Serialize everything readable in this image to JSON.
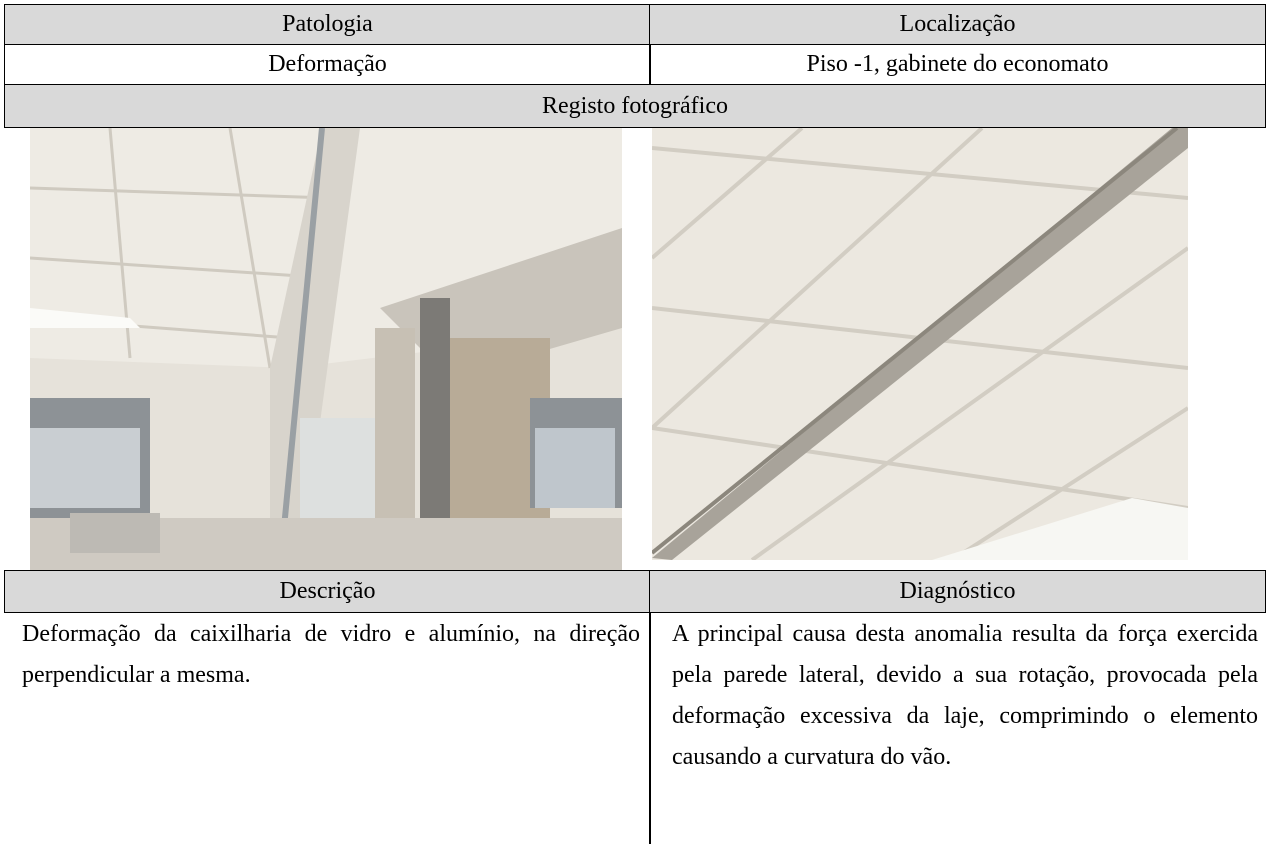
{
  "table": {
    "header": [
      "Patologia",
      "Localização"
    ],
    "row": [
      "Deformação",
      "Piso -1, gabinete do economato"
    ],
    "photo_header": "Registo fotográfico",
    "section_header": [
      "Descrição",
      "Diagnóstico"
    ],
    "section_body": [
      "Deformação da caixilharia de vidro e alumínio, na direção perpendicular a mesma.",
      "A principal causa desta anomalia resulta da força exercida pela parede lateral, devido a sua rotação, provocada pela deformação excessiva da laje, comprimindo o elemento causando a curvatura do vão."
    ]
  }
}
